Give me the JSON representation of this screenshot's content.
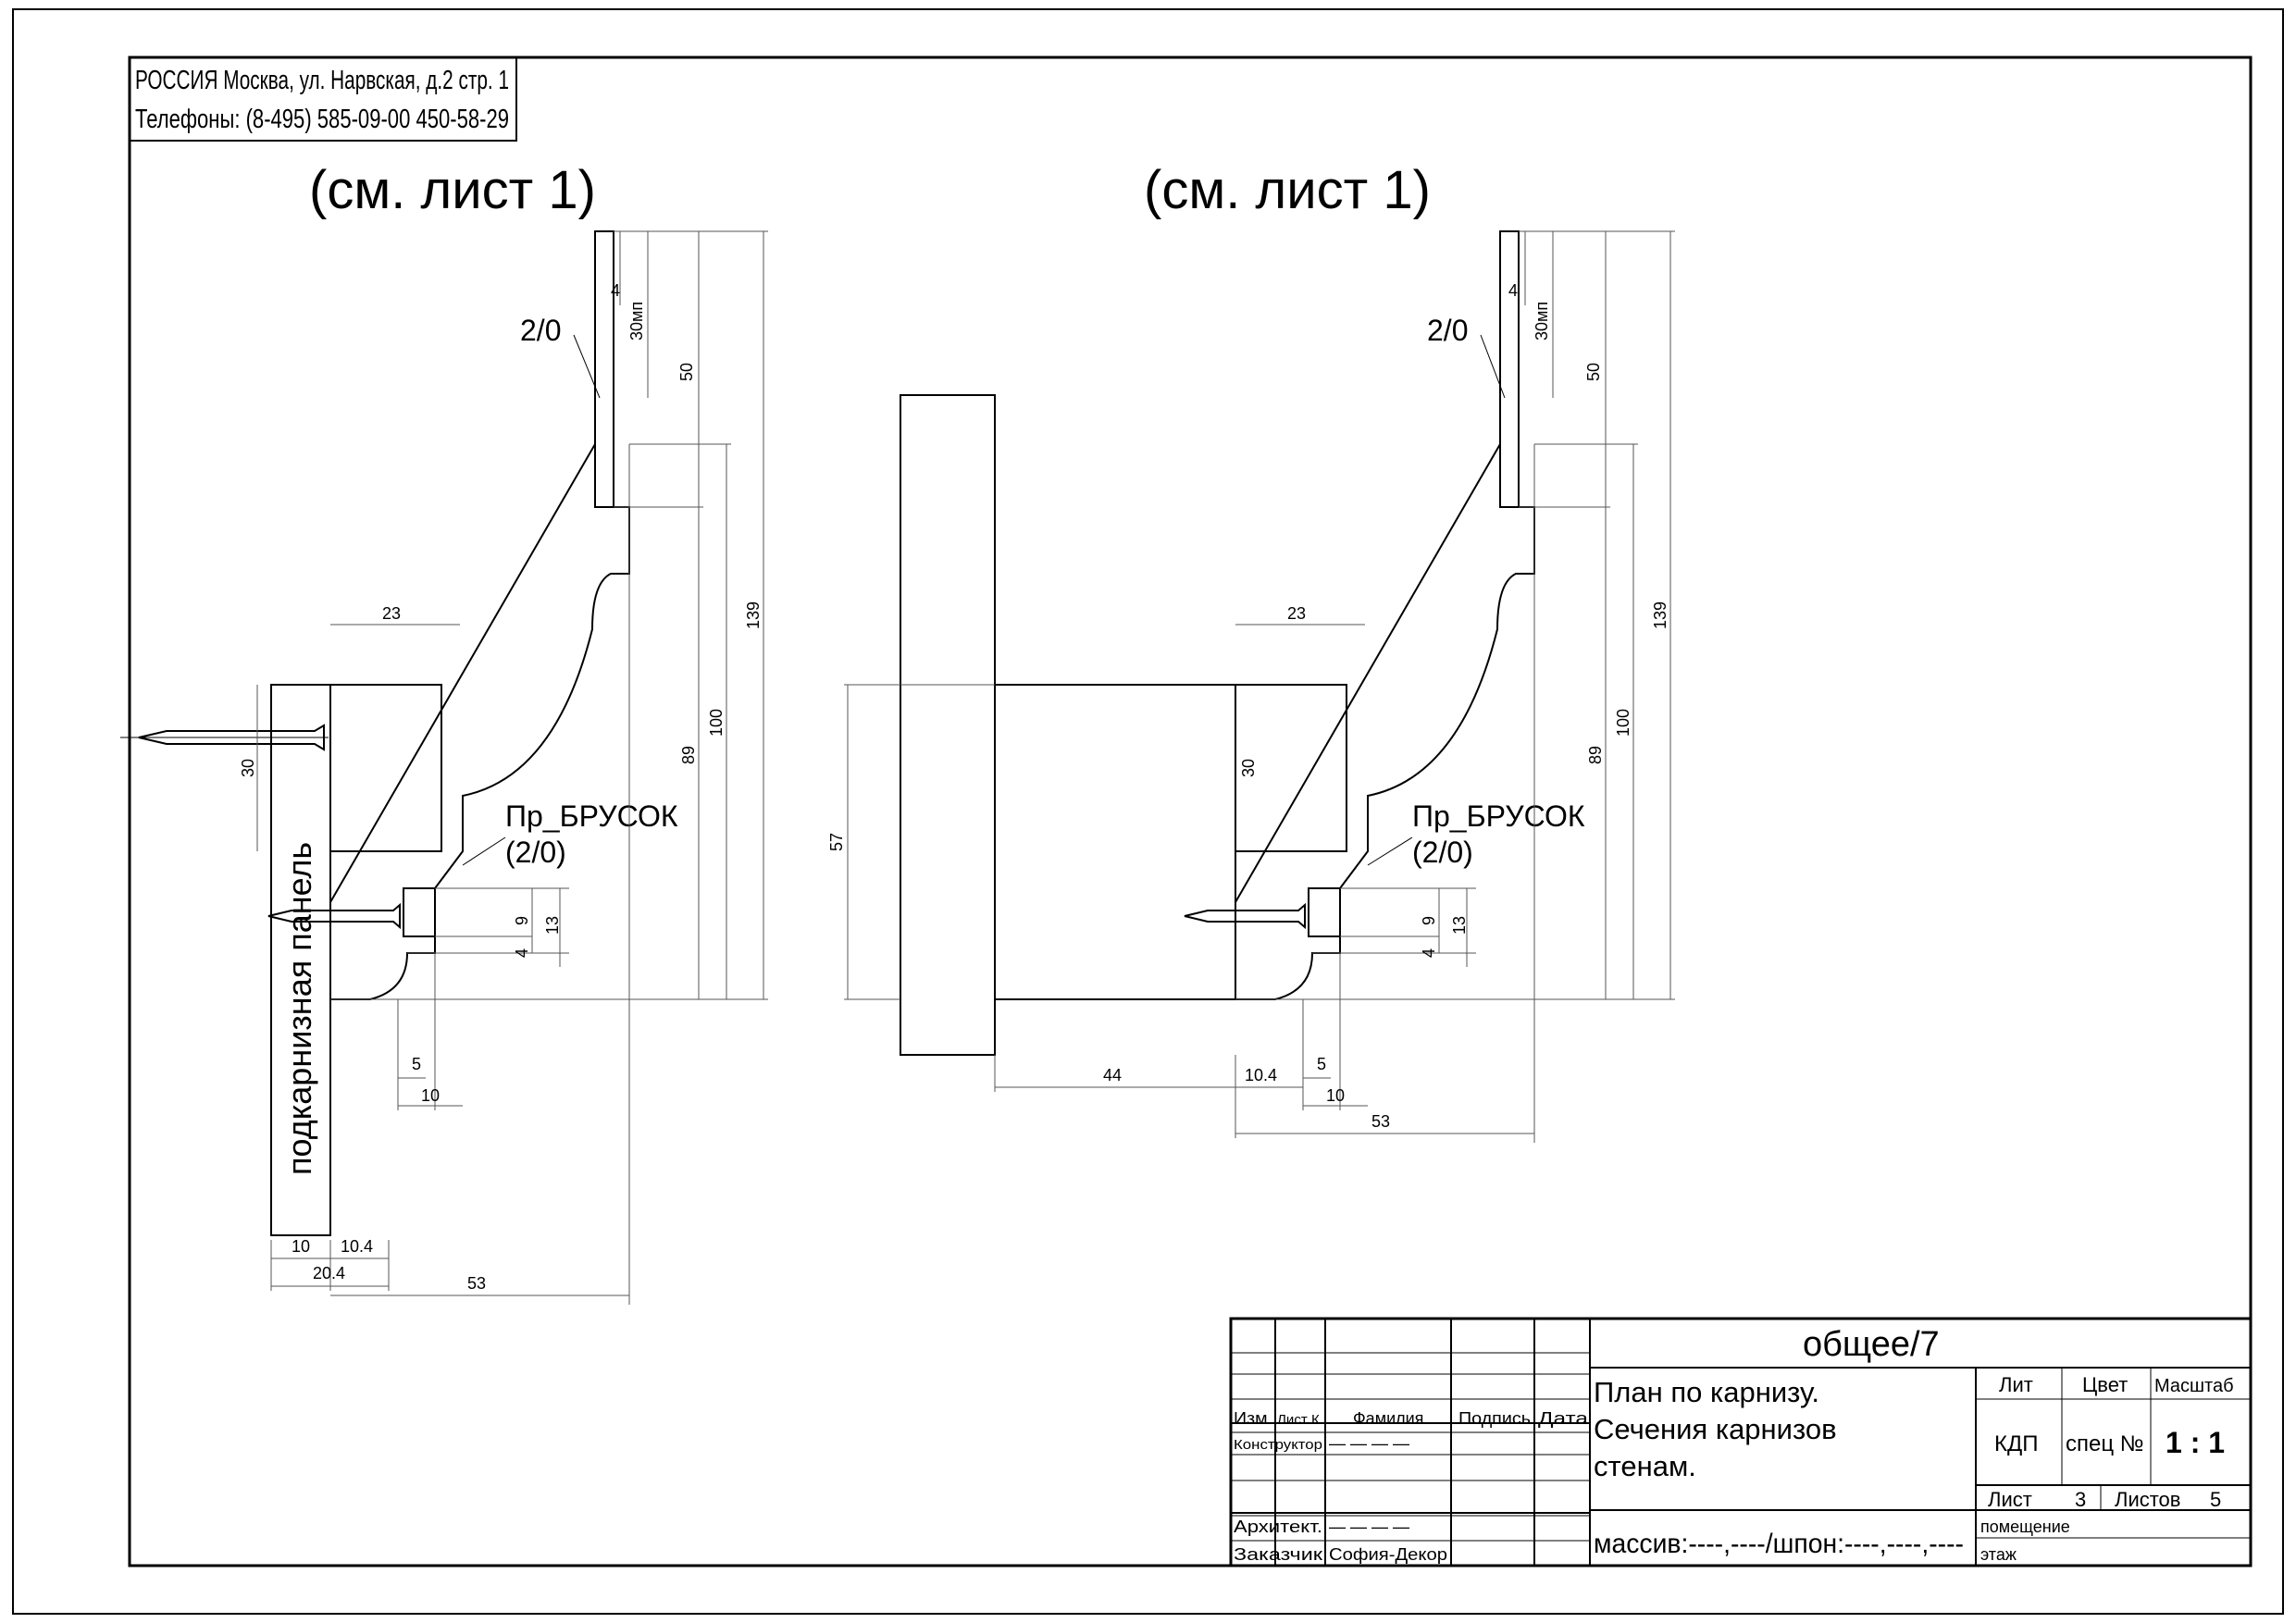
{
  "company": {
    "line1": "РОССИЯ Москва, ул. Нарвская, д.2 стр. 1",
    "line2": "Телефоны: (8-495) 585-09-00 450-58-29"
  },
  "left_section": {
    "ref_title": "(см. лист 1)",
    "material_label": "2/0",
    "bar_label_1": "Пр_БРУСОК",
    "bar_label_2": "(2/0)",
    "panel_label": "подкарнизная панель",
    "dims": {
      "d4": "4",
      "d30mp": "30мп",
      "d50": "50",
      "d139": "139",
      "d100": "100",
      "d89": "89",
      "d23": "23",
      "d30": "30",
      "d9": "9",
      "d13": "13",
      "d4b": "4",
      "d5": "5",
      "d10": "10",
      "d10b": "10",
      "d10_4": "10.4",
      "d20_4": "20.4",
      "d53": "53"
    }
  },
  "right_section": {
    "ref_title": "(см. лист 1)",
    "material_label": "2/0",
    "bar_label_1": "Пр_БРУСОК",
    "bar_label_2": "(2/0)",
    "dims": {
      "d4": "4",
      "d30mp": "30мп",
      "d50": "50",
      "d139": "139",
      "d100": "100",
      "d89": "89",
      "d23": "23",
      "d30": "30",
      "d57": "57",
      "d9": "9",
      "d13": "13",
      "d4b": "4",
      "d5": "5",
      "d10": "10",
      "d44": "44",
      "d10_4": "10.4",
      "d53": "53"
    }
  },
  "title_block": {
    "code": "общее/7",
    "title_1": "План по карнизу.",
    "title_2": "Сечения карнизов",
    "title_3": "стенам.",
    "col_lit": "Лит",
    "col_color": "Цвет",
    "col_scale": "Масштаб",
    "lit_value": "КДП",
    "color_value": "спец №",
    "scale_value": "1 : 1",
    "sheet_label": "Лист",
    "sheet_value": "3",
    "sheets_label": "Листов",
    "sheets_value": "5",
    "room_label": "помещение",
    "floor_label": "этаж",
    "material_line": "массив:----,----/шпон:----,----,----",
    "hdr_izm": "Изм.",
    "hdr_list": "Лист К.",
    "hdr_family": "Фамилия",
    "hdr_sign": "Подпись",
    "hdr_date": "Дата",
    "role_designer": "Конструктор",
    "role_designer_name": "— — — —",
    "role_architect": "Архитект.",
    "role_architect_name": "— — — —",
    "role_customer": "Заказчик",
    "role_customer_name": "София-Декор"
  }
}
